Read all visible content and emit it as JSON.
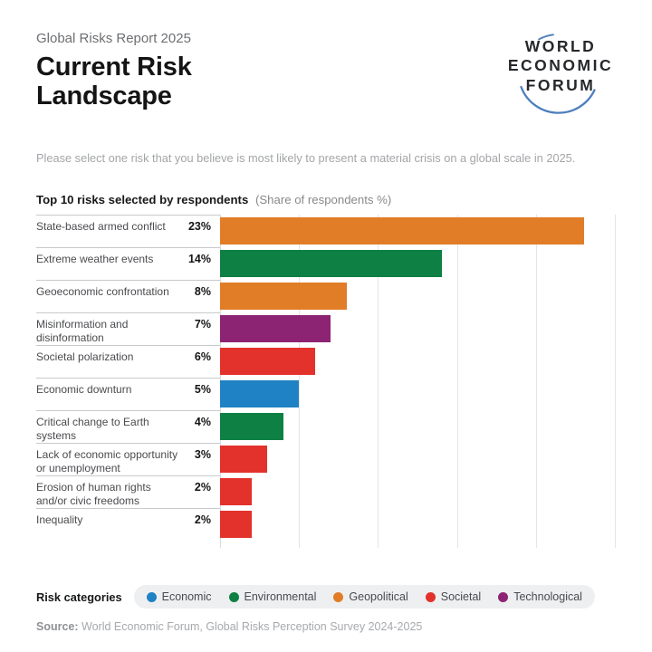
{
  "header": {
    "eyebrow": "Global Risks Report 2025",
    "title_line1": "Current Risk",
    "title_line2": "Landscape",
    "subtitle": "Please select one risk that you believe is most likely to present a material crisis on a global scale in 2025."
  },
  "logo": {
    "line1": "WORLD",
    "line2": "ECONOMIC",
    "line3": "FORUM",
    "arc_color": "#4D7EBD"
  },
  "chart_heading": {
    "bold": "Top 10 risks selected by respondents",
    "note": "(Share of respondents %)"
  },
  "chart_data": {
    "type": "bar",
    "orientation": "horizontal",
    "title": "Top 10 risks selected by respondents",
    "xlabel": "Share of respondents %",
    "xlim": [
      0,
      25
    ],
    "gridline_step": 5,
    "grid": true,
    "categories": [
      "State-based armed conflict",
      "Extreme weather events",
      "Geoeconomic confrontation",
      "Misinformation and disinformation",
      "Societal polarization",
      "Economic downturn",
      "Critical change to Earth systems",
      "Lack of economic opportunity or unemployment",
      "Erosion of human rights and/or civic freedoms",
      "Inequality"
    ],
    "values": [
      23,
      14,
      8,
      7,
      6,
      5,
      4,
      3,
      2,
      2
    ],
    "value_labels": [
      "23%",
      "14%",
      "8%",
      "7%",
      "6%",
      "5%",
      "4%",
      "3%",
      "2%",
      "2%"
    ],
    "bar_categories": [
      "Geopolitical",
      "Environmental",
      "Geopolitical",
      "Technological",
      "Societal",
      "Economic",
      "Environmental",
      "Societal",
      "Societal",
      "Societal"
    ]
  },
  "category_colors": {
    "Economic": "#1F82C4",
    "Environmental": "#0E8043",
    "Geopolitical": "#E17D27",
    "Societal": "#E2322B",
    "Technological": "#8D2373"
  },
  "legend": {
    "label": "Risk categories",
    "items": [
      {
        "name": "Economic",
        "color": "#1F82C4"
      },
      {
        "name": "Environmental",
        "color": "#0E8043"
      },
      {
        "name": "Geopolitical",
        "color": "#E17D27"
      },
      {
        "name": "Societal",
        "color": "#E2322B"
      },
      {
        "name": "Technological",
        "color": "#8D2373"
      }
    ]
  },
  "source": {
    "bold": "Source:",
    "text": " World Economic Forum, Global Risks Perception Survey 2024-2025"
  }
}
